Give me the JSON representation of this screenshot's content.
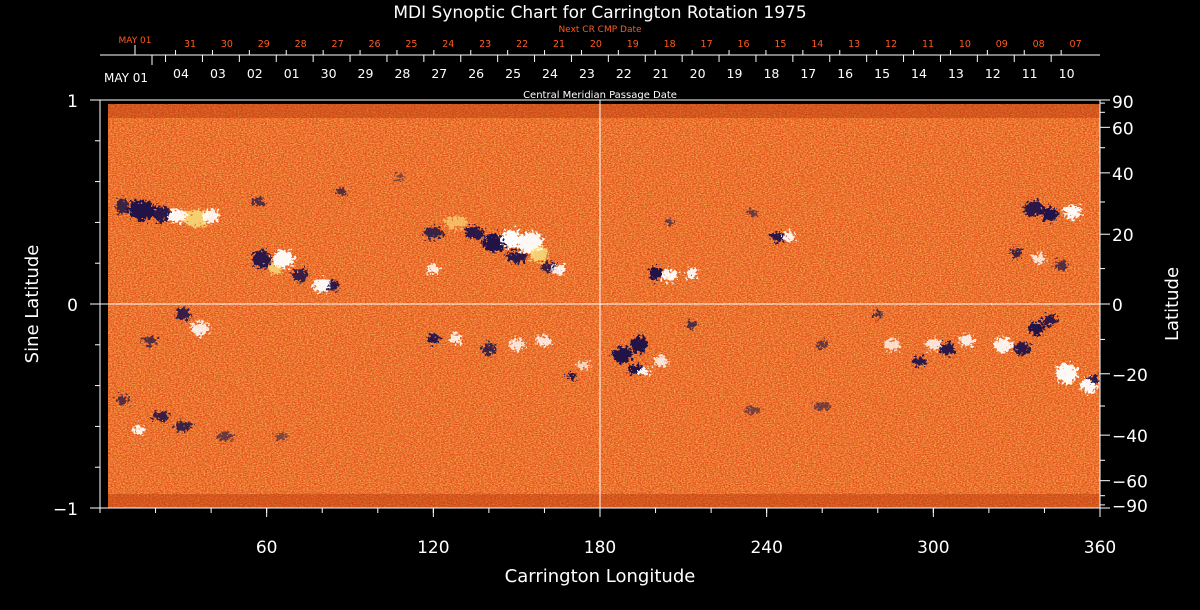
{
  "chart_data": {
    "type": "heatmap",
    "title": "MDI Synoptic Chart for Carrington Rotation 1975",
    "xlabel": "Carrington Longitude",
    "ylabel_left": "Sine Latitude",
    "ylabel_right": "Latitude",
    "xlim": [
      0,
      360
    ],
    "ylim_left": [
      -1,
      1
    ],
    "x_ticks": [
      60,
      120,
      180,
      240,
      300,
      360
    ],
    "y_ticks_left": [
      {
        "value": 1,
        "label": "1"
      },
      {
        "value": 0,
        "label": "0"
      },
      {
        "value": -1,
        "label": "−1"
      }
    ],
    "y_ticks_right": [
      {
        "deg": 90,
        "label": "90"
      },
      {
        "deg": 60,
        "label": "60"
      },
      {
        "deg": 40,
        "label": "40"
      },
      {
        "deg": 20,
        "label": "20"
      },
      {
        "deg": 0,
        "label": "0"
      },
      {
        "deg": -20,
        "label": "−20"
      },
      {
        "deg": -40,
        "label": "−40"
      },
      {
        "deg": -60,
        "label": "−60"
      },
      {
        "deg": -90,
        "label": "−90"
      }
    ],
    "central_meridian_axis": {
      "label": "Central Meridian Passage Date",
      "month_label": "MAY 01",
      "dates": [
        "04",
        "03",
        "02",
        "01",
        "30",
        "29",
        "28",
        "27",
        "26",
        "25",
        "24",
        "23",
        "22",
        "21",
        "20",
        "19",
        "18",
        "17",
        "16",
        "15",
        "14",
        "13",
        "12",
        "11",
        "10"
      ]
    },
    "next_cmp_axis": {
      "label": "Next CR CMP Date",
      "month_label": "MAY 01",
      "dates": [
        "31",
        "30",
        "29",
        "28",
        "27",
        "26",
        "25",
        "24",
        "23",
        "22",
        "21",
        "20",
        "19",
        "18",
        "17",
        "16",
        "15",
        "14",
        "13",
        "12",
        "11",
        "10",
        "09",
        "08",
        "07"
      ]
    },
    "crosshair": {
      "longitude": 180,
      "sine_latitude": 0
    },
    "colors": {
      "background_field": "#e8501a",
      "positive_polarity": "#ffffff",
      "negative_polarity": "#14124a",
      "axes": "#ffffff",
      "next_cmp_text": "#ff5a1f"
    }
  }
}
